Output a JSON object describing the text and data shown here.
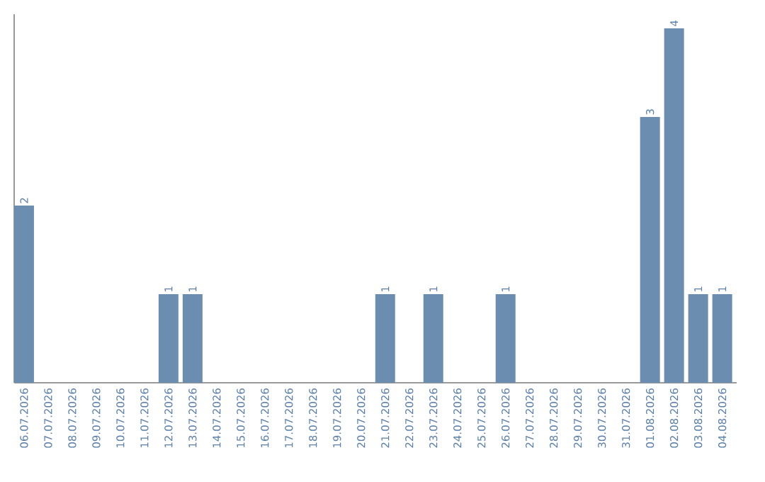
{
  "chart_data": {
    "type": "bar",
    "categories": [
      "06.07.2026",
      "07.07.2026",
      "08.07.2026",
      "09.07.2026",
      "10.07.2026",
      "11.07.2026",
      "12.07.2026",
      "13.07.2026",
      "14.07.2026",
      "15.07.2026",
      "16.07.2026",
      "17.07.2026",
      "18.07.2026",
      "19.07.2026",
      "20.07.2026",
      "21.07.2026",
      "22.07.2026",
      "23.07.2026",
      "24.07.2026",
      "25.07.2026",
      "26.07.2026",
      "27.07.2026",
      "28.07.2026",
      "29.07.2026",
      "30.07.2026",
      "31.07.2026",
      "01.08.2026",
      "02.08.2026",
      "03.08.2026",
      "04.08.2026"
    ],
    "values": [
      2,
      0,
      0,
      0,
      0,
      0,
      1,
      1,
      0,
      0,
      0,
      0,
      0,
      0,
      0,
      1,
      0,
      1,
      0,
      0,
      1,
      0,
      0,
      0,
      0,
      0,
      3,
      4,
      1,
      1
    ],
    "color": "#6b8db0",
    "value_labels": [
      "2",
      null,
      null,
      null,
      null,
      null,
      "1",
      "1",
      null,
      null,
      null,
      null,
      null,
      null,
      null,
      "1",
      null,
      "1",
      null,
      null,
      "1",
      null,
      null,
      null,
      null,
      null,
      "3",
      "4",
      "1",
      "1"
    ],
    "tick_labels": "x",
    "grid": false
  }
}
